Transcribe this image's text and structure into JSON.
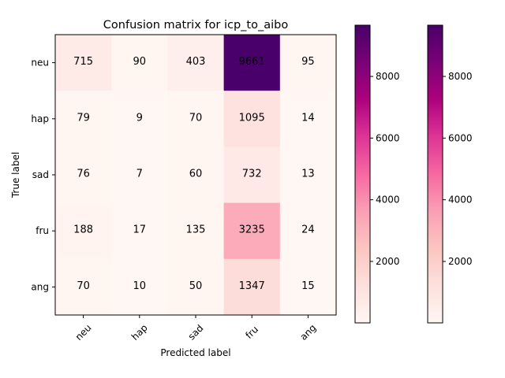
{
  "chart_data": {
    "type": "heatmap",
    "title": "Confusion matrix for icp_to_aibo",
    "xlabel": "Predicted label",
    "ylabel": "True label",
    "x_categories": [
      "neu",
      "hap",
      "sad",
      "fru",
      "ang"
    ],
    "y_categories": [
      "neu",
      "hap",
      "sad",
      "fru",
      "ang"
    ],
    "values": [
      [
        715,
        90,
        403,
        9661,
        95
      ],
      [
        79,
        9,
        70,
        1095,
        14
      ],
      [
        76,
        7,
        60,
        732,
        13
      ],
      [
        188,
        17,
        135,
        3235,
        24
      ],
      [
        70,
        10,
        50,
        1347,
        15
      ]
    ],
    "colormap": "RdPu",
    "color_range": [
      7,
      9661
    ],
    "colorbars": [
      {
        "ticks": [
          2000,
          4000,
          6000,
          8000
        ]
      },
      {
        "ticks": [
          2000,
          4000,
          6000,
          8000
        ]
      }
    ],
    "x_tick_rotation_deg": 45
  }
}
